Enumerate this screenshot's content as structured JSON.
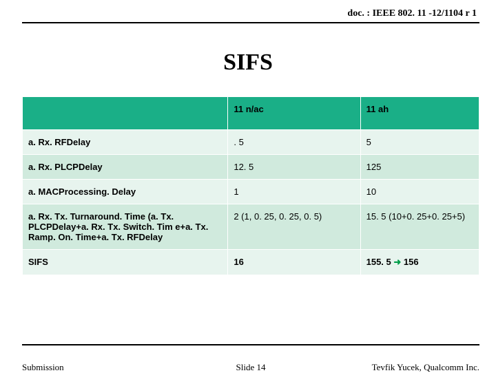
{
  "header": {
    "doc_id": "doc. : IEEE 802. 11 -12/1104 r 1"
  },
  "title": "SIFS",
  "table": {
    "columns": [
      "",
      "11 n/ac",
      "11 ah"
    ],
    "col_widths": [
      "45%",
      "29%",
      "26%"
    ],
    "header_bg": "#1aaf87",
    "row_bg_odd": "#e7f4ee",
    "row_bg_even": "#d0eadd",
    "rows": [
      {
        "cells": [
          "a. Rx. RFDelay",
          ". 5",
          "5"
        ],
        "stripe": "odd"
      },
      {
        "cells": [
          "a. Rx. PLCPDelay",
          "12. 5",
          "125"
        ],
        "stripe": "even"
      },
      {
        "cells": [
          "a. MACProcessing. Delay",
          "1",
          "10"
        ],
        "stripe": "odd"
      },
      {
        "cells": [
          "a. Rx. Tx. Turnaround. Time (a. Tx. PLCPDelay+a. Rx. Tx. Switch. Tim e+a. Tx. Ramp. On. Time+a. Tx. RFDelay",
          "2 (1, 0. 25, 0. 25, 0. 5)",
          "15. 5 (10+0. 25+0. 25+5)"
        ],
        "stripe": "even"
      },
      {
        "cells": [
          "SIFS",
          "16",
          ""
        ],
        "stripe": "odd",
        "sifs_row": true
      }
    ],
    "sifs_last_cell": {
      "prefix": "155. 5 ",
      "arrow": "➜",
      "suffix": " 156",
      "arrow_color": "#009e49"
    }
  },
  "footer": {
    "left": "Submission",
    "center": "Slide 14",
    "right": "Tevfik Yucek, Qualcomm Inc."
  }
}
